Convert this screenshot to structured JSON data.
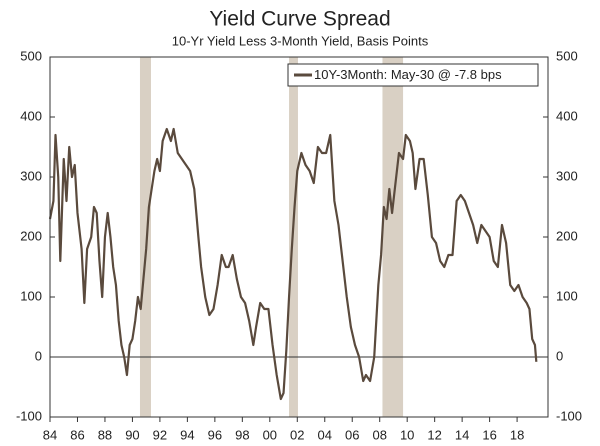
{
  "chart_data": {
    "type": "line",
    "title": "Yield Curve Spread",
    "subtitle": "10-Yr Yield Less 3-Month Yield, Basis Points",
    "xlim": [
      1984,
      2020.25
    ],
    "xticks": [
      {
        "value": 1984,
        "label": "84"
      },
      {
        "value": 1986,
        "label": "86"
      },
      {
        "value": 1988,
        "label": "88"
      },
      {
        "value": 1990,
        "label": "90"
      },
      {
        "value": 1992,
        "label": "92"
      },
      {
        "value": 1994,
        "label": "94"
      },
      {
        "value": 1996,
        "label": "96"
      },
      {
        "value": 1998,
        "label": "98"
      },
      {
        "value": 2000,
        "label": "00"
      },
      {
        "value": 2002,
        "label": "02"
      },
      {
        "value": 2004,
        "label": "04"
      },
      {
        "value": 2006,
        "label": "06"
      },
      {
        "value": 2008,
        "label": "08"
      },
      {
        "value": 2010,
        "label": "10"
      },
      {
        "value": 2012,
        "label": "12"
      },
      {
        "value": 2014,
        "label": "14"
      },
      {
        "value": 2016,
        "label": "16"
      },
      {
        "value": 2018,
        "label": "18"
      }
    ],
    "ylim": [
      -100,
      500
    ],
    "yticks": [
      -100,
      0,
      100,
      200,
      300,
      400,
      500
    ],
    "y2lim": [
      -100,
      500
    ],
    "y2ticks": [
      -100,
      0,
      100,
      200,
      300,
      400,
      500
    ],
    "recessions": [
      [
        1990.55,
        1991.35
      ],
      [
        2001.4,
        2002.05
      ],
      [
        2008.2,
        2009.7
      ]
    ],
    "recession_color": "#d9d0c4",
    "legend": "upper right",
    "x": [
      1984.0,
      1984.25,
      1984.4,
      1984.6,
      1984.75,
      1985.0,
      1985.2,
      1985.4,
      1985.6,
      1985.8,
      1986.0,
      1986.3,
      1986.5,
      1986.7,
      1987.0,
      1987.2,
      1987.4,
      1987.6,
      1987.8,
      1988.0,
      1988.2,
      1988.4,
      1988.6,
      1988.8,
      1989.0,
      1989.2,
      1989.4,
      1989.6,
      1989.8,
      1990.0,
      1990.2,
      1990.4,
      1990.6,
      1990.8,
      1991.0,
      1991.2,
      1991.4,
      1991.6,
      1991.8,
      1992.0,
      1992.2,
      1992.5,
      1992.8,
      1993.0,
      1993.3,
      1993.6,
      1993.9,
      1994.2,
      1994.5,
      1994.8,
      1995.0,
      1995.3,
      1995.6,
      1995.9,
      1996.2,
      1996.5,
      1996.8,
      1997.0,
      1997.3,
      1997.6,
      1997.9,
      1998.2,
      1998.5,
      1998.8,
      1999.0,
      1999.3,
      1999.6,
      1999.9,
      2000.2,
      2000.5,
      2000.8,
      2001.0,
      2001.2,
      2001.4,
      2001.6,
      2001.8,
      2002.0,
      2002.3,
      2002.6,
      2002.9,
      2003.2,
      2003.5,
      2003.8,
      2004.1,
      2004.4,
      2004.7,
      2005.0,
      2005.3,
      2005.6,
      2005.9,
      2006.2,
      2006.5,
      2006.8,
      2007.0,
      2007.3,
      2007.6,
      2007.9,
      2008.1,
      2008.3,
      2008.5,
      2008.7,
      2008.9,
      2009.1,
      2009.4,
      2009.7,
      2009.9,
      2010.2,
      2010.4,
      2010.6,
      2010.9,
      2011.2,
      2011.5,
      2011.8,
      2012.1,
      2012.4,
      2012.7,
      2013.0,
      2013.3,
      2013.6,
      2013.9,
      2014.2,
      2014.5,
      2014.8,
      2015.1,
      2015.4,
      2015.7,
      2016.0,
      2016.3,
      2016.6,
      2016.9,
      2017.2,
      2017.5,
      2017.8,
      2018.1,
      2018.4,
      2018.7,
      2018.9,
      2019.1,
      2019.3,
      2019.4
    ],
    "series": [
      {
        "name": "10Y-3Month: May-30 @ -7.8 bps",
        "color": "#5a4a3d",
        "values": [
          230,
          260,
          370,
          300,
          160,
          330,
          260,
          350,
          300,
          320,
          240,
          180,
          90,
          180,
          200,
          250,
          240,
          160,
          100,
          200,
          240,
          200,
          150,
          120,
          60,
          20,
          0,
          -30,
          20,
          30,
          60,
          100,
          80,
          130,
          180,
          250,
          280,
          310,
          330,
          310,
          360,
          380,
          360,
          380,
          340,
          330,
          320,
          310,
          280,
          200,
          150,
          100,
          70,
          80,
          120,
          170,
          150,
          150,
          170,
          130,
          100,
          90,
          60,
          20,
          50,
          90,
          80,
          80,
          20,
          -30,
          -70,
          -60,
          10,
          100,
          180,
          250,
          310,
          340,
          320,
          310,
          290,
          350,
          340,
          340,
          370,
          260,
          220,
          160,
          100,
          50,
          20,
          0,
          -40,
          -30,
          -40,
          0,
          120,
          170,
          250,
          230,
          280,
          240,
          280,
          340,
          330,
          370,
          360,
          340,
          280,
          330,
          330,
          270,
          200,
          190,
          160,
          150,
          170,
          170,
          260,
          270,
          260,
          240,
          220,
          190,
          220,
          210,
          200,
          160,
          150,
          220,
          190,
          120,
          110,
          120,
          100,
          90,
          80,
          30,
          20,
          -8
        ]
      }
    ]
  }
}
